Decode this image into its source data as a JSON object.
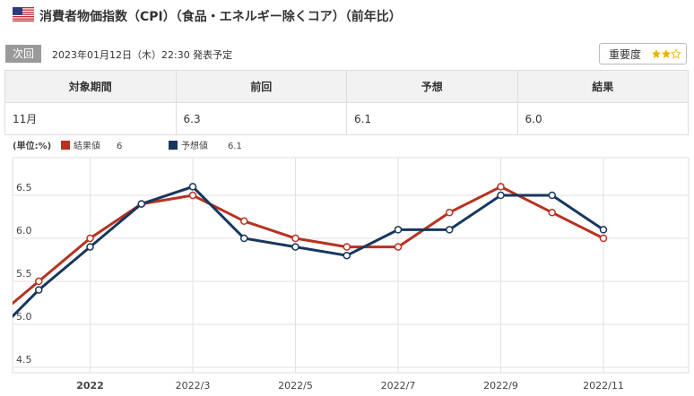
{
  "header": {
    "title": "消費者物価指数（CPI）（食品・エネルギー除くコア）（前年比）"
  },
  "schedule": {
    "badge": "次回",
    "text": "2023年01月12日（木）22:30 発表予定",
    "importance": "重要度"
  },
  "table": {
    "headers": [
      "対象期間",
      "前回",
      "予想",
      "結果"
    ],
    "rows": [
      [
        "11月",
        "6.3",
        "6.1",
        "6.0"
      ]
    ]
  },
  "chart_data": {
    "type": "line",
    "unit_label": "(単位:%)",
    "categories": [
      null,
      null,
      "2022",
      null,
      "2022/3",
      null,
      "2022/5",
      null,
      "2022/7",
      null,
      "2022/9",
      null,
      "2022/11"
    ],
    "series": [
      {
        "name": "結果値",
        "color": "#b8321f",
        "values": [
          5.0,
          5.5,
          6.0,
          6.4,
          6.5,
          6.2,
          6.0,
          5.9,
          5.9,
          6.3,
          6.6,
          6.3,
          6.0
        ]
      },
      {
        "name": "予想値",
        "color": "#17375e",
        "values": [
          4.8,
          5.4,
          5.9,
          6.4,
          6.6,
          6.0,
          5.9,
          5.8,
          6.1,
          6.1,
          6.5,
          6.5,
          6.1
        ]
      }
    ],
    "ylim": [
      4.5,
      7.0
    ],
    "yticks": [
      4.5,
      {
        "value": 5.0,
        "label": "5.0"
      },
      5.5,
      {
        "value": 6.0,
        "label": "6.0"
      },
      6.5
    ],
    "grid": true
  }
}
